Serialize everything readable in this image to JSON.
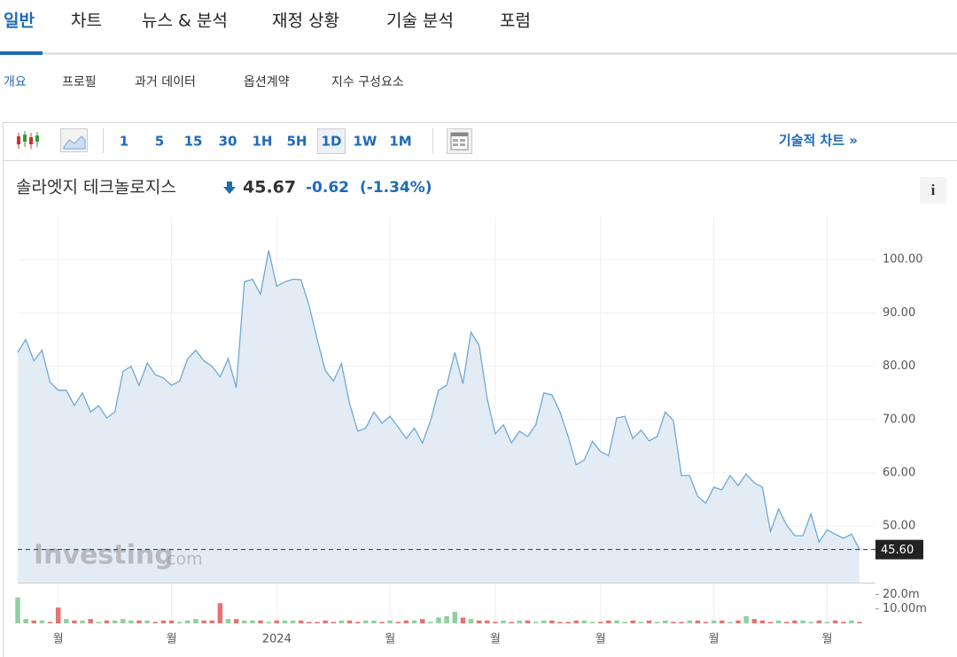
{
  "tabs": {
    "items": [
      "일반",
      "차트",
      "뉴스 & 분석",
      "재정 상황",
      "기술 분석",
      "포럼"
    ],
    "active": 0
  },
  "subtabs": {
    "items": [
      "개요",
      "프로필",
      "과거 데이터",
      "옵션계약",
      "지수 구성요소"
    ],
    "active": 0
  },
  "toolbar": {
    "intervals": [
      "1",
      "5",
      "15",
      "30",
      "1H",
      "5H",
      "1D",
      "1W",
      "1M"
    ],
    "active": 6,
    "link": "기술적 차트 »"
  },
  "quote": {
    "name": "솔라엣지 테크놀로지스",
    "price": "45.67",
    "change": "-0.62",
    "change_pct": "(-1.34%)",
    "info": "i"
  },
  "chart_data": {
    "type": "area",
    "watermark": {
      "brand": "Investing",
      "suffix": ".com"
    },
    "xlim": [
      0,
      104
    ],
    "xticks": [
      {
        "value": 5,
        "label": "월"
      },
      {
        "value": 19,
        "label": "월"
      },
      {
        "value": 32,
        "label": "2024"
      },
      {
        "value": 46,
        "label": "월"
      },
      {
        "value": 59,
        "label": "월"
      },
      {
        "value": 72,
        "label": "월"
      },
      {
        "value": 86,
        "label": "월"
      },
      {
        "value": 100,
        "label": "월"
      }
    ],
    "ylim": [
      39.4,
      108
    ],
    "yticks": [
      {
        "value": 50,
        "label": "50.00"
      },
      {
        "value": 60,
        "label": "60.00"
      },
      {
        "value": 70,
        "label": "70.00"
      },
      {
        "value": 80,
        "label": "80.00"
      },
      {
        "value": 90,
        "label": "90.00"
      },
      {
        "value": 100,
        "label": "100.00"
      }
    ],
    "last": {
      "value": 45.6,
      "label": "45.60"
    },
    "series": [
      {
        "name": "price",
        "color": "#6fa8d6",
        "fill": "#e3ecf4",
        "values": [
          82.6,
          85,
          81,
          83,
          77,
          75.5,
          75.5,
          72.6,
          75,
          71.4,
          72.6,
          70.3,
          71.4,
          79,
          80,
          76.4,
          80.6,
          78.4,
          77.8,
          76.4,
          77.2,
          81.4,
          83,
          81,
          80,
          78,
          81.4,
          76,
          95.8,
          96.3,
          93.5,
          101.7,
          95,
          95.8,
          96.3,
          96.2,
          91.4,
          85,
          79.2,
          77.2,
          80.5,
          73,
          67.8,
          68.4,
          71.4,
          69.3,
          70.6,
          68.6,
          66.4,
          68.4,
          65.6,
          69.8,
          75.5,
          76.4,
          82.6,
          76.7,
          86.4,
          83.9,
          73.9,
          67.3,
          69,
          65.6,
          67.8,
          66.8,
          69,
          75,
          74.6,
          71.4,
          66.8,
          61.5,
          62.4,
          65.9,
          64,
          63.2,
          70.3,
          70.6,
          66.4,
          68,
          66,
          66.8,
          71.4,
          69.8,
          59.5,
          59.5,
          55.6,
          54.3,
          57.3,
          56.8,
          59.5,
          57.6,
          59.8,
          58.1,
          57.3,
          49,
          53.2,
          50.2,
          48.2,
          48.2,
          52.3,
          47,
          49.3,
          48.5,
          47.7,
          48.5,
          45.6
        ]
      }
    ],
    "volume": {
      "up_color": "#8fd19e",
      "down_color": "#e57373",
      "ylim": [
        0,
        27
      ],
      "yticks": [
        {
          "value": 10,
          "label": "10.00m"
        },
        {
          "value": 20,
          "label": "20.0m"
        }
      ],
      "values": [
        18,
        3,
        2,
        2,
        1,
        11,
        3,
        2,
        2,
        3,
        1,
        2,
        2,
        3,
        2,
        2,
        2,
        1,
        2,
        2,
        1,
        2,
        3,
        2,
        2,
        14,
        3,
        3,
        2,
        2,
        2,
        1,
        2,
        2,
        2,
        2,
        1,
        1,
        2,
        1,
        2,
        2,
        1,
        2,
        2,
        1,
        2,
        1,
        2,
        2,
        3,
        1,
        4,
        5,
        8,
        4,
        3,
        2,
        2,
        1,
        2,
        1,
        2,
        2,
        1,
        2,
        2,
        1,
        1,
        2,
        2,
        1,
        1,
        2,
        2,
        1,
        2,
        1,
        2,
        1,
        2,
        1,
        1,
        2,
        2,
        1,
        2,
        2,
        1,
        2,
        5,
        3,
        2,
        1,
        2,
        1,
        2,
        2,
        1,
        2,
        1,
        2,
        1,
        2,
        1
      ]
    }
  }
}
